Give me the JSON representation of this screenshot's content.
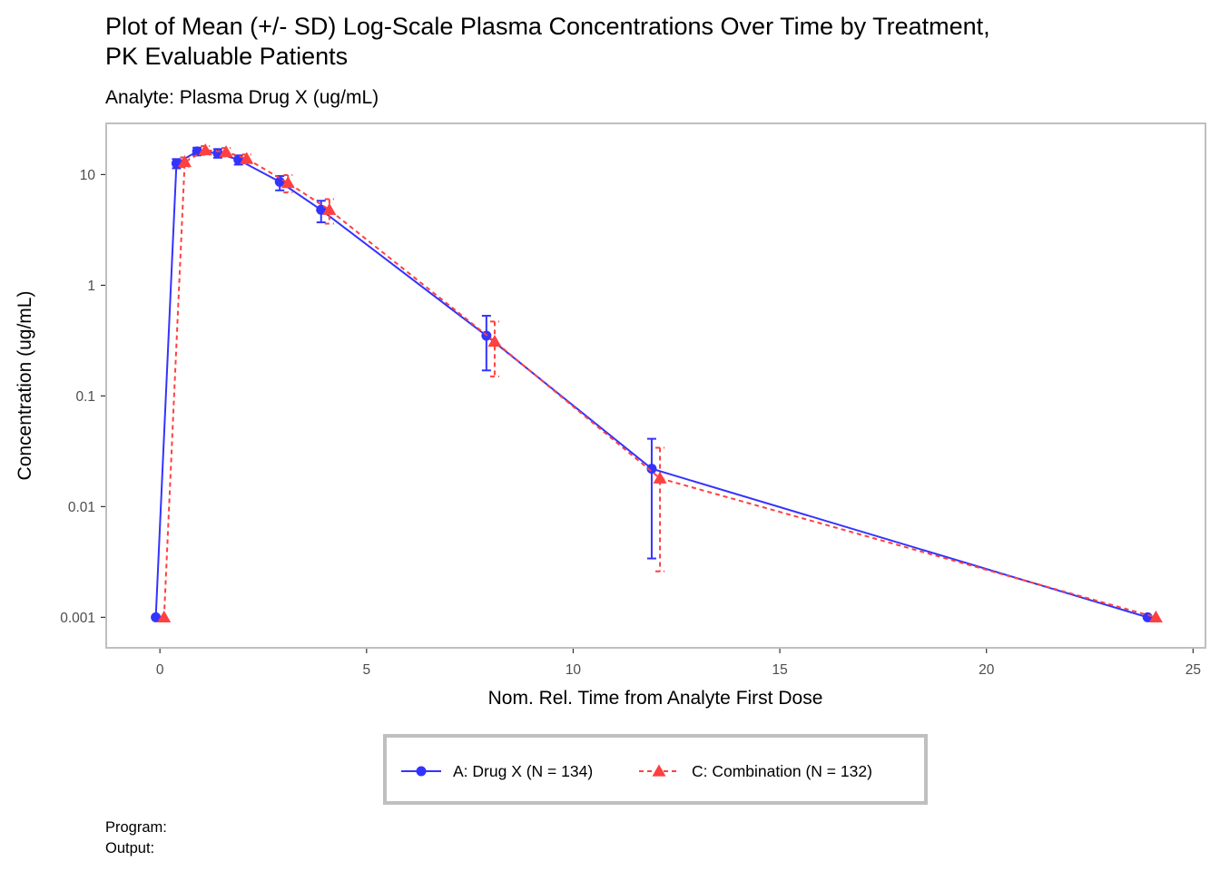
{
  "chart_data": {
    "type": "line",
    "title_lines": [
      "Plot of Mean (+/- SD) Log-Scale Plasma Concentrations Over Time by Treatment,",
      "PK Evaluable Patients"
    ],
    "subtitle": "Analyte: Plasma Drug X (ug/mL)",
    "xlabel": "Nom. Rel. Time from Analyte First Dose",
    "ylabel": "Concentration (ug/mL)",
    "x_scale": "linear",
    "y_scale": "log10",
    "xlim": [
      -1.3,
      25.3
    ],
    "ylim": [
      0.00053,
      29
    ],
    "x_ticks": [
      0,
      5,
      10,
      15,
      20,
      25
    ],
    "x_tick_labels": [
      "0",
      "5",
      "10",
      "15",
      "20",
      "25"
    ],
    "y_ticks": [
      0.001,
      0.01,
      0.1,
      1,
      10
    ],
    "y_tick_labels": [
      "0.001",
      "0.01",
      "0.1",
      "1",
      "10"
    ],
    "grid": false,
    "legend_position": "bottom",
    "series": [
      {
        "name": "A: Drug X (N = 134)",
        "color": "#3333ff",
        "marker": "circle",
        "line_style": "solid",
        "x": [
          0,
          0.5,
          1,
          1.5,
          2,
          3,
          4,
          8,
          12,
          24
        ],
        "dodge": -0.1,
        "y": [
          0.001,
          12.6,
          16.2,
          15.6,
          13.6,
          8.6,
          4.8,
          0.35,
          0.022,
          0.001
        ],
        "y_low": [
          null,
          11.4,
          14.9,
          14.2,
          12.3,
          7.2,
          3.7,
          0.17,
          0.0034,
          null
        ],
        "y_high": [
          null,
          13.8,
          17.5,
          17.0,
          14.9,
          9.7,
          5.8,
          0.53,
          0.041,
          null
        ]
      },
      {
        "name": "C: Combination (N = 132)",
        "color": "#ff4040",
        "marker": "triangle",
        "line_style": "dashed",
        "x": [
          0,
          0.5,
          1,
          1.5,
          2,
          3,
          4,
          8,
          12,
          24
        ],
        "dodge": 0.1,
        "y": [
          0.001,
          13.0,
          16.6,
          16.0,
          13.9,
          8.4,
          4.8,
          0.31,
          0.018,
          0.001
        ],
        "y_low": [
          null,
          11.7,
          15.1,
          14.6,
          12.6,
          6.9,
          3.6,
          0.15,
          0.0026,
          null
        ],
        "y_high": [
          null,
          14.3,
          18.1,
          17.4,
          15.2,
          9.9,
          6.0,
          0.47,
          0.034,
          null
        ]
      }
    ]
  },
  "caption": {
    "program_label": "Program:",
    "output_label": "Output:"
  }
}
